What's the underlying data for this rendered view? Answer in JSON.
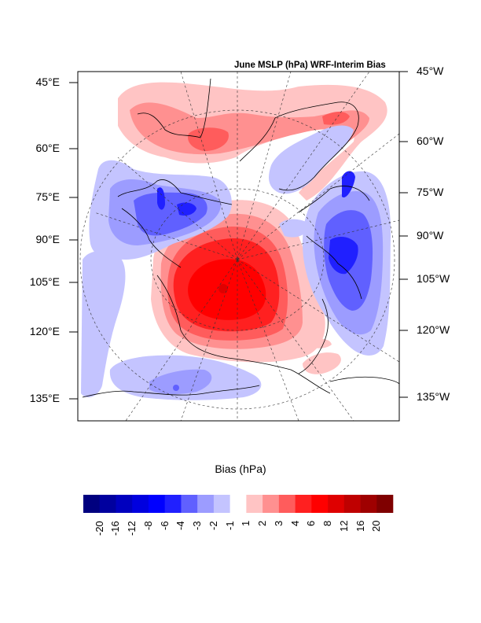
{
  "chart_data": {
    "type": "heatmap",
    "title": "June MSLP (hPa) WRF-Interim Bias",
    "projection": "polar stereographic (north polar)",
    "left_axis_labels": [
      "45°E",
      "60°E",
      "75°E",
      "90°E",
      "105°E",
      "120°E",
      "135°E"
    ],
    "right_axis_labels": [
      "45°W",
      "60°W",
      "75°W",
      "90°W",
      "105°W",
      "120°W",
      "135°W"
    ],
    "colorbar": {
      "title": "Bias (hPa)",
      "levels": [
        "-20",
        "-16",
        "-12",
        "-8",
        "-6",
        "-4",
        "-3",
        "-2",
        "-1",
        "1",
        "2",
        "3",
        "4",
        "6",
        "8",
        "12",
        "16",
        "20"
      ],
      "colors": [
        "#00007f",
        "#00009f",
        "#0000bf",
        "#0000df",
        "#0000ff",
        "#2020ff",
        "#6060ff",
        "#9c9cff",
        "#c4c4ff",
        "#ffffff",
        "#ffc4c4",
        "#ff9090",
        "#ff5c5c",
        "#ff2020",
        "#ff0000",
        "#df0000",
        "#bf0000",
        "#9f0000",
        "#7f0000"
      ]
    },
    "features": [
      {
        "name": "Siberian/Arctic Ocean high bias",
        "max_level": "8 to 12",
        "sign": "positive"
      },
      {
        "name": "Canadian Archipelago low bias",
        "min_level": "-6 to -8",
        "sign": "negative"
      },
      {
        "name": "Northern Europe/Barents low bias",
        "min_level": "-4 to -6",
        "sign": "negative"
      },
      {
        "name": "Nordic Seas / Greenland coast positive band",
        "max_level": "3 to 4",
        "sign": "positive"
      },
      {
        "name": "Central Siberia weak negative",
        "min_level": "-3 to -4",
        "sign": "negative"
      }
    ]
  }
}
